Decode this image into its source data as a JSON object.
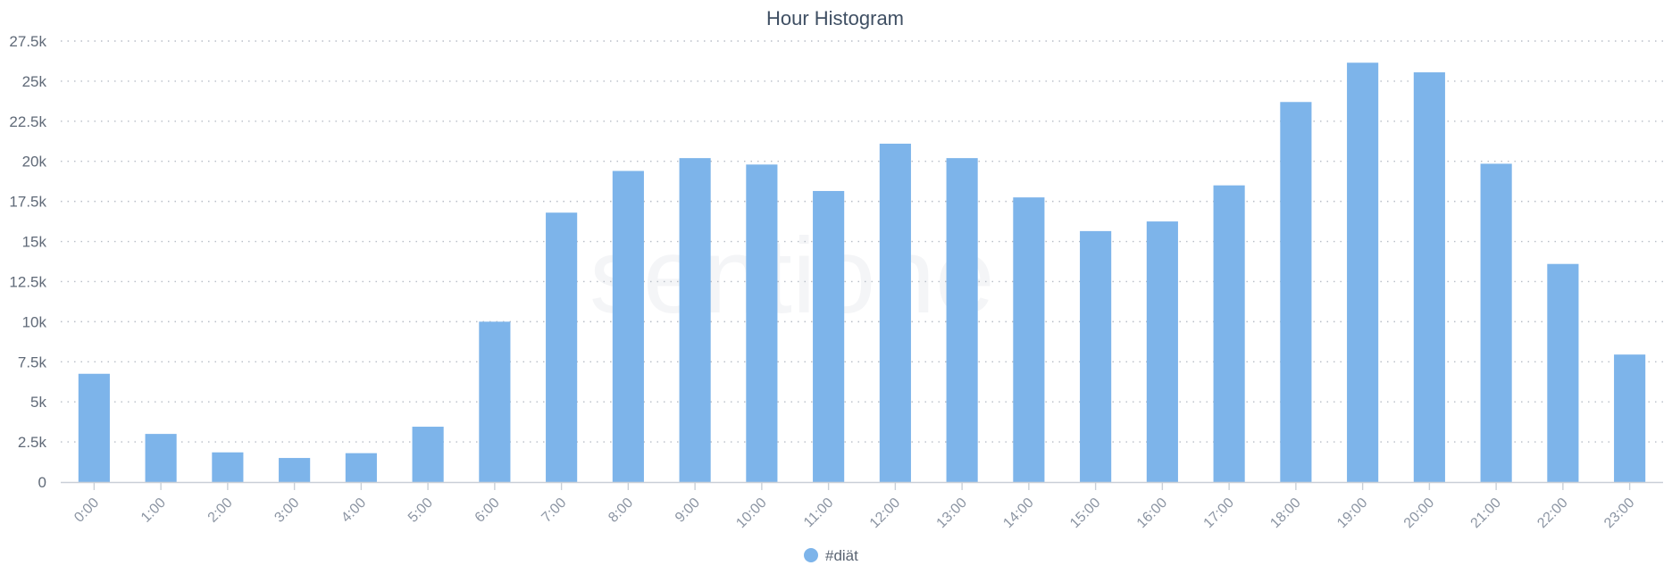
{
  "chart_data": {
    "type": "bar",
    "title": "Hour Histogram",
    "categories": [
      "0:00",
      "1:00",
      "2:00",
      "3:00",
      "4:00",
      "5:00",
      "6:00",
      "7:00",
      "8:00",
      "9:00",
      "10:00",
      "11:00",
      "12:00",
      "13:00",
      "14:00",
      "15:00",
      "16:00",
      "17:00",
      "18:00",
      "19:00",
      "20:00",
      "21:00",
      "22:00",
      "23:00"
    ],
    "series": [
      {
        "name": "#diät",
        "color": "#7db4ea",
        "values": [
          6750,
          3000,
          1850,
          1500,
          1800,
          3450,
          10000,
          16800,
          19400,
          20200,
          19800,
          18150,
          21100,
          20200,
          17750,
          15650,
          16250,
          18500,
          23700,
          26150,
          25550,
          19850,
          13600,
          7950
        ]
      }
    ],
    "ylim": [
      0,
      27500
    ],
    "yticks": [
      0,
      2500,
      5000,
      7500,
      10000,
      12500,
      15000,
      17500,
      20000,
      22500,
      25000,
      27500
    ],
    "ytick_labels": [
      "0",
      "2.5k",
      "5k",
      "7.5k",
      "10k",
      "12.5k",
      "15k",
      "17.5k",
      "20k",
      "22.5k",
      "25k",
      "27.5k"
    ],
    "grid": true,
    "legend_position": "bottom-center"
  }
}
